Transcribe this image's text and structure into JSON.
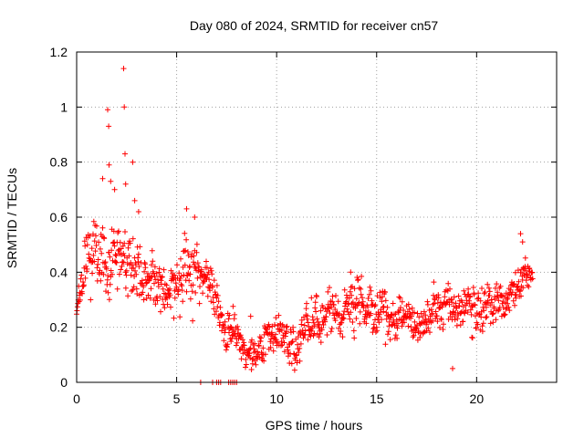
{
  "chart_data": {
    "type": "scatter",
    "title": "Day 080 of 2024, SRMTID for receiver cn57",
    "xlabel": "GPS time / hours",
    "ylabel": "SRMTID / TECUs",
    "xlim": [
      0,
      24
    ],
    "ylim": [
      0,
      1.2
    ],
    "x_ticks": [
      0,
      5,
      10,
      15,
      20
    ],
    "x_tick_labels": [
      "0",
      "5",
      "10",
      "15",
      "20"
    ],
    "y_ticks": [
      0,
      0.2,
      0.4,
      0.6,
      0.8,
      1.0,
      1.2
    ],
    "y_tick_labels": [
      "0",
      "0.2",
      "0.4",
      "0.6",
      "0.8",
      "1",
      "1.2"
    ],
    "grid": true,
    "marker": "plus",
    "series_color": "#ff0000",
    "profile": [
      [
        0.0,
        0.28,
        0.05
      ],
      [
        0.3,
        0.36,
        0.07
      ],
      [
        0.6,
        0.45,
        0.09
      ],
      [
        0.9,
        0.5,
        0.1
      ],
      [
        1.2,
        0.47,
        0.1
      ],
      [
        1.5,
        0.4,
        0.1
      ],
      [
        1.8,
        0.45,
        0.1
      ],
      [
        2.1,
        0.5,
        0.1
      ],
      [
        2.5,
        0.46,
        0.09
      ],
      [
        3.0,
        0.4,
        0.09
      ],
      [
        3.5,
        0.36,
        0.08
      ],
      [
        4.0,
        0.38,
        0.08
      ],
      [
        4.5,
        0.34,
        0.08
      ],
      [
        5.0,
        0.36,
        0.08
      ],
      [
        5.5,
        0.38,
        0.09
      ],
      [
        6.0,
        0.4,
        0.09
      ],
      [
        6.5,
        0.32,
        0.07
      ],
      [
        7.0,
        0.28,
        0.06
      ],
      [
        7.5,
        0.22,
        0.06
      ],
      [
        8.0,
        0.16,
        0.05
      ],
      [
        8.5,
        0.1,
        0.04
      ],
      [
        9.0,
        0.1,
        0.05
      ],
      [
        9.5,
        0.16,
        0.06
      ],
      [
        10.0,
        0.2,
        0.06
      ],
      [
        10.5,
        0.14,
        0.05
      ],
      [
        11.0,
        0.12,
        0.05
      ],
      [
        11.5,
        0.18,
        0.06
      ],
      [
        12.0,
        0.22,
        0.06
      ],
      [
        12.5,
        0.24,
        0.06
      ],
      [
        13.0,
        0.25,
        0.06
      ],
      [
        13.5,
        0.26,
        0.06
      ],
      [
        14.0,
        0.28,
        0.07
      ],
      [
        14.5,
        0.25,
        0.06
      ],
      [
        15.0,
        0.26,
        0.06
      ],
      [
        15.5,
        0.28,
        0.07
      ],
      [
        16.0,
        0.25,
        0.06
      ],
      [
        16.5,
        0.22,
        0.05
      ],
      [
        17.0,
        0.2,
        0.05
      ],
      [
        17.5,
        0.22,
        0.05
      ],
      [
        18.0,
        0.25,
        0.06
      ],
      [
        18.5,
        0.27,
        0.06
      ],
      [
        19.0,
        0.24,
        0.06
      ],
      [
        19.5,
        0.26,
        0.06
      ],
      [
        20.0,
        0.25,
        0.06
      ],
      [
        20.5,
        0.28,
        0.06
      ],
      [
        21.0,
        0.3,
        0.06
      ],
      [
        21.5,
        0.28,
        0.06
      ],
      [
        22.0,
        0.35,
        0.05
      ],
      [
        22.5,
        0.4,
        0.05
      ],
      [
        22.8,
        0.38,
        0.04
      ]
    ],
    "sample_interval_hours": 0.02,
    "x_end": 22.8,
    "outliers": [
      [
        1.55,
        0.99
      ],
      [
        1.6,
        0.93
      ],
      [
        1.62,
        0.79
      ],
      [
        1.7,
        0.73
      ],
      [
        2.35,
        1.14
      ],
      [
        2.38,
        1.0
      ],
      [
        2.42,
        0.83
      ],
      [
        2.45,
        0.72
      ],
      [
        2.8,
        0.8
      ],
      [
        2.9,
        0.66
      ],
      [
        3.1,
        0.62
      ],
      [
        1.3,
        0.74
      ],
      [
        1.9,
        0.7
      ],
      [
        5.5,
        0.63
      ],
      [
        5.9,
        0.6
      ],
      [
        8.7,
        0.24
      ],
      [
        13.7,
        0.4
      ],
      [
        18.8,
        0.05
      ],
      [
        22.2,
        0.54
      ],
      [
        22.3,
        0.51
      ]
    ],
    "zero_points": [
      6.2,
      6.8,
      7.0,
      7.1,
      7.2,
      7.6,
      7.7,
      7.8,
      7.9,
      8.0
    ]
  }
}
